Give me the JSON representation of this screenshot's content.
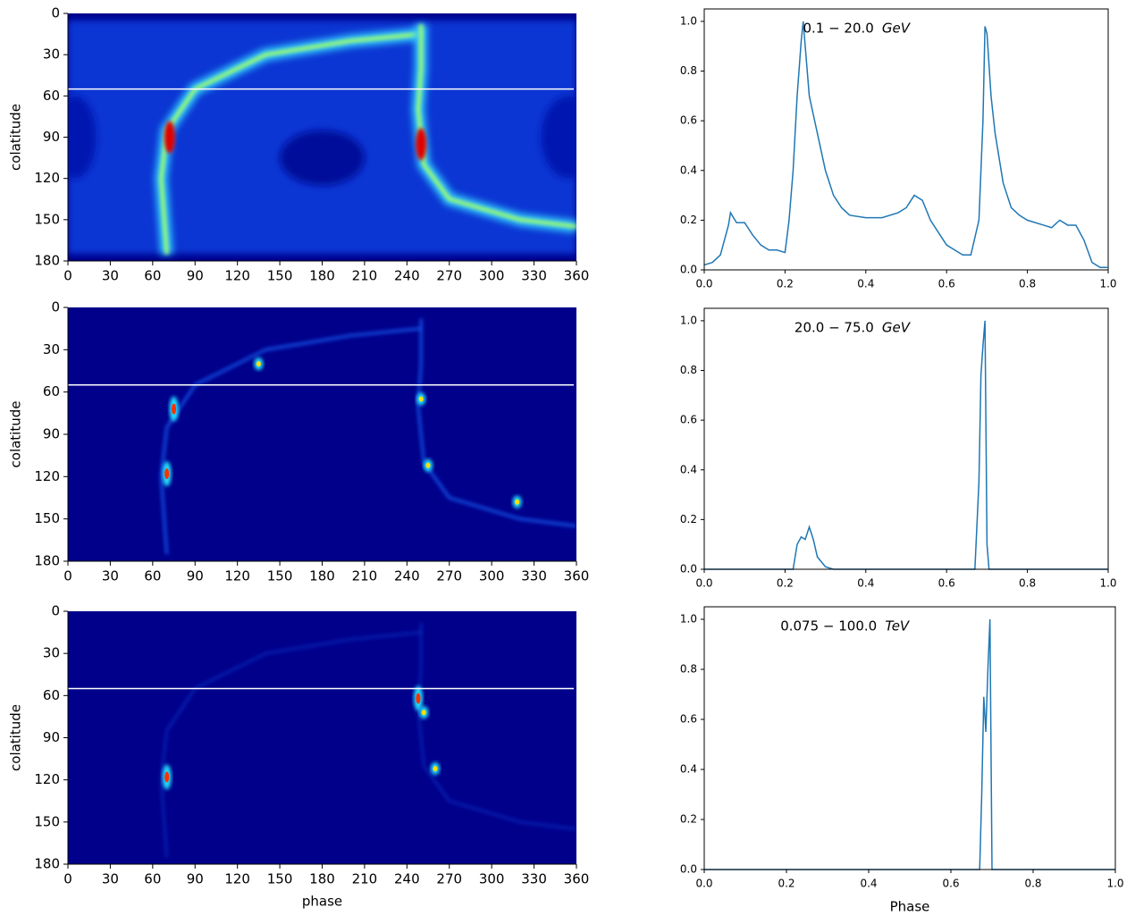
{
  "chart_data": [
    {
      "type": "heatmap",
      "ylabel": "colatitude",
      "xlim": [
        0,
        360
      ],
      "ylim": [
        180,
        0
      ],
      "xticks": [
        0,
        30,
        60,
        90,
        120,
        150,
        180,
        210,
        240,
        270,
        300,
        330,
        360
      ],
      "yticks": [
        0,
        30,
        60,
        90,
        120,
        150,
        180
      ],
      "hline": 55,
      "hline_color": "#ffffff"
    },
    {
      "type": "line",
      "annotation": "0.1 − 20.0",
      "unit": "GeV",
      "color": "#1f77b4",
      "xlim": [
        0,
        1
      ],
      "ylim": [
        0,
        1.05
      ],
      "xticks": [
        {
          "value": 0,
          "label": "0.0"
        },
        {
          "value": 0.2,
          "label": "0.2"
        },
        {
          "value": 0.4,
          "label": "0.4"
        },
        {
          "value": 0.6,
          "label": "0.6"
        },
        {
          "value": 0.8,
          "label": "0.8"
        },
        {
          "value": 1,
          "label": "1.0"
        }
      ],
      "yticks": [
        {
          "value": 0,
          "label": "0.0"
        },
        {
          "value": 0.2,
          "label": "0.2"
        },
        {
          "value": 0.4,
          "label": "0.4"
        },
        {
          "value": 0.6,
          "label": "0.6"
        },
        {
          "value": 0.8,
          "label": "0.8"
        },
        {
          "value": 1,
          "label": "1.0"
        }
      ],
      "x": [
        0,
        0.02,
        0.04,
        0.06,
        0.065,
        0.08,
        0.1,
        0.12,
        0.14,
        0.16,
        0.18,
        0.2,
        0.21,
        0.22,
        0.23,
        0.24,
        0.245,
        0.25,
        0.26,
        0.28,
        0.3,
        0.32,
        0.34,
        0.36,
        0.4,
        0.44,
        0.48,
        0.5,
        0.52,
        0.54,
        0.56,
        0.58,
        0.6,
        0.62,
        0.64,
        0.66,
        0.68,
        0.69,
        0.695,
        0.7,
        0.71,
        0.72,
        0.74,
        0.76,
        0.78,
        0.8,
        0.84,
        0.86,
        0.88,
        0.9,
        0.92,
        0.94,
        0.96,
        0.98,
        1.0
      ],
      "values": [
        0.02,
        0.03,
        0.06,
        0.18,
        0.23,
        0.19,
        0.19,
        0.14,
        0.1,
        0.08,
        0.08,
        0.07,
        0.2,
        0.4,
        0.7,
        0.92,
        1.0,
        0.9,
        0.7,
        0.55,
        0.4,
        0.3,
        0.25,
        0.22,
        0.21,
        0.21,
        0.23,
        0.25,
        0.3,
        0.28,
        0.2,
        0.15,
        0.1,
        0.08,
        0.06,
        0.06,
        0.2,
        0.6,
        0.98,
        0.95,
        0.7,
        0.55,
        0.35,
        0.25,
        0.22,
        0.2,
        0.18,
        0.17,
        0.2,
        0.18,
        0.18,
        0.12,
        0.03,
        0.01,
        0.01
      ]
    },
    {
      "type": "heatmap",
      "ylabel": "colatitude",
      "xlim": [
        0,
        360
      ],
      "ylim": [
        180,
        0
      ],
      "xticks": [
        0,
        30,
        60,
        90,
        120,
        150,
        180,
        210,
        240,
        270,
        300,
        330,
        360
      ],
      "yticks": [
        0,
        30,
        60,
        90,
        120,
        150,
        180
      ],
      "hline": 55,
      "hline_color": "#ffffff"
    },
    {
      "type": "line",
      "annotation": "20.0 − 75.0",
      "unit": "GeV",
      "color": "#1f77b4",
      "xlim": [
        0,
        1
      ],
      "ylim": [
        0,
        1.05
      ],
      "xticks": [
        {
          "value": 0,
          "label": "0.0"
        },
        {
          "value": 0.2,
          "label": "0.2"
        },
        {
          "value": 0.4,
          "label": "0.4"
        },
        {
          "value": 0.6,
          "label": "0.6"
        },
        {
          "value": 0.8,
          "label": "0.8"
        },
        {
          "value": 1,
          "label": "1.0"
        }
      ],
      "yticks": [
        {
          "value": 0,
          "label": "0.0"
        },
        {
          "value": 0.2,
          "label": "0.2"
        },
        {
          "value": 0.4,
          "label": "0.4"
        },
        {
          "value": 0.6,
          "label": "0.6"
        },
        {
          "value": 0.8,
          "label": "0.8"
        },
        {
          "value": 1,
          "label": "1.0"
        }
      ],
      "x": [
        0,
        0.22,
        0.23,
        0.24,
        0.25,
        0.26,
        0.27,
        0.28,
        0.3,
        0.32,
        0.67,
        0.68,
        0.685,
        0.69,
        0.695,
        0.7,
        0.705,
        1.0
      ],
      "values": [
        0,
        0,
        0.1,
        0.13,
        0.12,
        0.17,
        0.12,
        0.05,
        0.01,
        0,
        0,
        0.35,
        0.78,
        0.9,
        1.0,
        0.1,
        0,
        0
      ]
    },
    {
      "type": "heatmap",
      "ylabel": "colatitude",
      "xlabel": "phase",
      "xlim": [
        0,
        360
      ],
      "ylim": [
        180,
        0
      ],
      "xticks": [
        0,
        30,
        60,
        90,
        120,
        150,
        180,
        210,
        240,
        270,
        300,
        330,
        360
      ],
      "yticks": [
        0,
        30,
        60,
        90,
        120,
        150,
        180
      ],
      "hline": 55,
      "hline_color": "#ffffff"
    },
    {
      "type": "line",
      "annotation": "0.075 − 100.0",
      "unit": "TeV",
      "xlabel": "Phase",
      "color": "#1f77b4",
      "xlim": [
        0,
        1
      ],
      "ylim": [
        0,
        1.05
      ],
      "xticks": [
        {
          "value": 0,
          "label": "0.0"
        },
        {
          "value": 0.2,
          "label": "0.2"
        },
        {
          "value": 0.4,
          "label": "0.4"
        },
        {
          "value": 0.6,
          "label": "0.6"
        },
        {
          "value": 0.8,
          "label": "0.8"
        },
        {
          "value": 1,
          "label": "1.0"
        }
      ],
      "yticks": [
        {
          "value": 0,
          "label": "0.0"
        },
        {
          "value": 0.2,
          "label": "0.2"
        },
        {
          "value": 0.4,
          "label": "0.4"
        },
        {
          "value": 0.6,
          "label": "0.6"
        },
        {
          "value": 0.8,
          "label": "0.8"
        },
        {
          "value": 1,
          "label": "1.0"
        }
      ],
      "x": [
        0,
        0.67,
        0.675,
        0.68,
        0.685,
        0.69,
        0.695,
        0.7,
        1.0
      ],
      "values": [
        0,
        0,
        0.3,
        0.69,
        0.55,
        0.8,
        1.0,
        0,
        0
      ]
    }
  ]
}
